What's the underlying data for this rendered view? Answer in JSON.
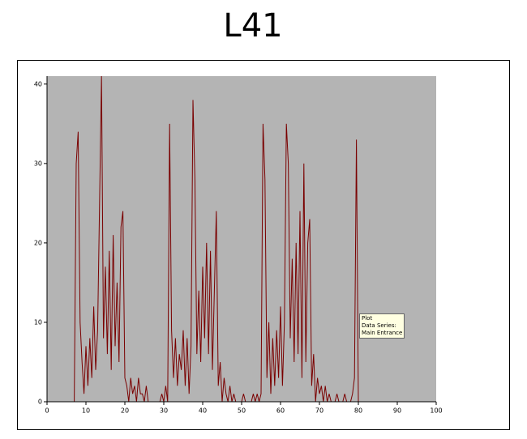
{
  "chart_data": {
    "type": "line",
    "title": "L41",
    "x": [
      7,
      7.5,
      8,
      8.5,
      9,
      9.5,
      10,
      10.5,
      11,
      11.5,
      12,
      12.5,
      13,
      13.5,
      14,
      14.5,
      15,
      15.5,
      16,
      16.5,
      17,
      17.5,
      18,
      18.5,
      19,
      19.5,
      20,
      20.5,
      21,
      21.5,
      22,
      22.5,
      23,
      23.5,
      24,
      24.5,
      25,
      25.5,
      26,
      26.5,
      27,
      27.5,
      28,
      28.5,
      29,
      29.5,
      30,
      30.5,
      31,
      31.5,
      32,
      32.5,
      33,
      33.5,
      34,
      34.5,
      35,
      35.5,
      36,
      36.5,
      37,
      37.5,
      38,
      38.5,
      39,
      39.5,
      40,
      40.5,
      41,
      41.5,
      42,
      42.5,
      43,
      43.5,
      44,
      44.5,
      45,
      45.5,
      46,
      46.5,
      47,
      47.5,
      48,
      48.5,
      49,
      49.5,
      50,
      50.5,
      51,
      51.5,
      52,
      52.5,
      53,
      53.5,
      54,
      54.5,
      55,
      55.5,
      56,
      56.5,
      57,
      57.5,
      58,
      58.5,
      59,
      59.5,
      60,
      60.5,
      61,
      61.5,
      62,
      62.5,
      63,
      63.5,
      64,
      64.5,
      65,
      65.5,
      66,
      66.5,
      67,
      67.5,
      68,
      68.5,
      69,
      69.5,
      70,
      70.5,
      71,
      71.5,
      72,
      72.5,
      73,
      73.5,
      74,
      74.5,
      75,
      75.5,
      76,
      76.5,
      77,
      77.5,
      78,
      78.5,
      79,
      79.5,
      80
    ],
    "series": [
      {
        "name": "Main Entrance",
        "color": "#7a0000",
        "values": [
          0,
          30,
          34,
          10,
          5,
          1,
          7,
          2,
          8,
          3,
          12,
          4,
          9,
          25,
          41,
          8,
          17,
          6,
          19,
          4,
          21,
          7,
          15,
          5,
          22,
          24,
          3,
          2,
          0,
          3,
          1,
          2,
          0,
          3,
          1,
          1,
          0,
          2,
          0,
          0,
          0,
          0,
          0,
          0,
          0,
          1,
          0,
          2,
          0,
          35,
          9,
          3,
          8,
          2,
          6,
          4,
          9,
          2,
          8,
          1,
          7,
          38,
          28,
          6,
          14,
          5,
          17,
          8,
          20,
          6,
          19,
          4,
          14,
          24,
          2,
          5,
          0,
          3,
          1,
          0,
          2,
          0,
          1,
          0,
          0,
          0,
          0,
          1,
          0,
          0,
          0,
          0,
          1,
          0,
          1,
          0,
          1,
          35,
          28,
          3,
          10,
          1,
          8,
          2,
          9,
          3,
          12,
          2,
          10,
          35,
          30,
          8,
          18,
          5,
          20,
          6,
          24,
          3,
          30,
          5,
          20,
          23,
          2,
          6,
          0,
          3,
          1,
          2,
          0,
          2,
          0,
          1,
          0,
          0,
          0,
          1,
          0,
          0,
          0,
          1,
          0,
          0,
          0,
          1,
          3,
          33,
          0
        ]
      }
    ],
    "annotation": [
      "Plot",
      "Data Series:"
    ],
    "xlim": [
      0,
      100
    ],
    "xticks": [
      0,
      10,
      20,
      30,
      40,
      50,
      60,
      70,
      80,
      90,
      100
    ],
    "ylim": [
      0,
      41
    ],
    "yticks": [
      0,
      10,
      20,
      30,
      40
    ],
    "plot_background": "#b4b4b4"
  }
}
